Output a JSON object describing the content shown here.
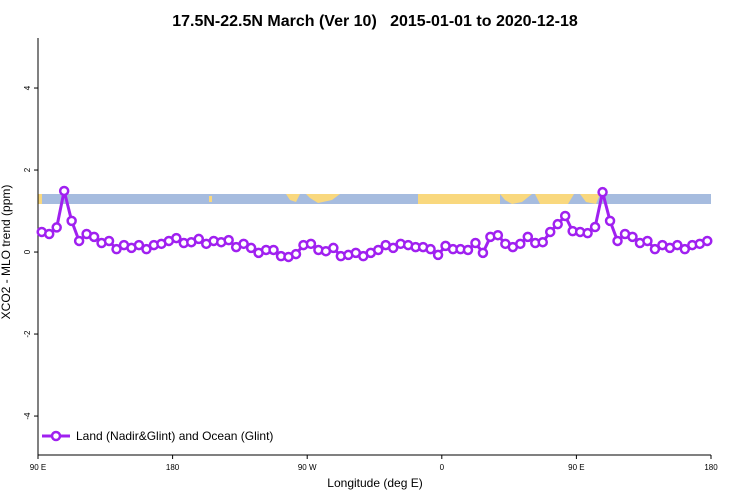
{
  "chart_data": {
    "type": "line",
    "title": "17.5N-22.5N March (Ver 10)   2015-01-01 to 2020-12-18",
    "x_label": "Longitude (deg E)",
    "y_label": "XCO2 - MLO trend (ppm)",
    "xlim": [
      90,
      540
    ],
    "ylim": [
      -4.95,
      5.22
    ],
    "xticks": [
      {
        "value": 90,
        "label": "90 E"
      },
      {
        "value": 180,
        "label": "180"
      },
      {
        "value": 270,
        "label": "90 W"
      },
      {
        "value": 360,
        "label": "0"
      },
      {
        "value": 450,
        "label": "90 E"
      },
      {
        "value": 540,
        "label": "180"
      }
    ],
    "yticks": [
      -4,
      -2,
      0,
      2,
      4
    ],
    "legend": "bottom-left",
    "x": [
      92.5,
      97.5,
      102.5,
      107.5,
      112.5,
      117.5,
      122.5,
      127.5,
      132.5,
      137.5,
      142.5,
      147.5,
      152.5,
      157.5,
      162.5,
      167.5,
      172.5,
      177.5,
      182.5,
      187.5,
      192.5,
      197.5,
      202.5,
      207.5,
      212.5,
      217.5,
      222.5,
      227.5,
      232.5,
      237.5,
      242.5,
      247.5,
      252.5,
      257.5,
      262.5,
      267.5,
      272.5,
      277.5,
      282.5,
      287.5,
      292.5,
      297.5,
      302.5,
      307.5,
      312.5,
      317.5,
      322.5,
      327.5,
      332.5,
      337.5,
      342.5,
      347.5,
      352.5,
      357.5,
      362.5,
      367.5,
      372.5,
      377.5,
      382.5,
      387.5,
      392.5,
      397.5,
      402.5,
      407.5,
      412.5,
      417.5,
      422.5,
      427.5,
      432.5,
      437.5,
      442.5,
      447.5,
      452.5,
      457.5,
      462.5,
      467.5,
      472.5,
      477.5,
      482.5,
      487.5,
      492.5,
      497.5,
      502.5,
      507.5,
      512.5,
      517.5,
      522.5,
      527.5,
      532.5,
      537.5
    ],
    "series": [
      {
        "name": "Land (Nadir&Glint) and Ocean (Glint)",
        "color": "#a020f0",
        "values": [
          0.49,
          0.44,
          0.6,
          1.49,
          0.76,
          0.27,
          0.44,
          0.37,
          0.22,
          0.27,
          0.07,
          0.17,
          0.1,
          0.17,
          0.07,
          0.17,
          0.2,
          0.27,
          0.34,
          0.22,
          0.24,
          0.32,
          0.2,
          0.27,
          0.24,
          0.29,
          0.12,
          0.2,
          0.1,
          -0.02,
          0.05,
          0.05,
          -0.1,
          -0.12,
          -0.05,
          0.17,
          0.2,
          0.05,
          0.02,
          0.1,
          -0.1,
          -0.07,
          -0.02,
          -0.1,
          -0.02,
          0.05,
          0.17,
          0.1,
          0.2,
          0.17,
          0.12,
          0.12,
          0.07,
          -0.07,
          0.15,
          0.07,
          0.07,
          0.05,
          0.22,
          -0.02,
          0.37,
          0.41,
          0.2,
          0.12,
          0.2,
          0.37,
          0.22,
          0.24,
          0.49,
          0.68,
          0.88,
          0.51,
          0.49,
          0.46,
          0.61,
          1.46,
          0.76,
          0.27,
          0.44,
          0.37,
          0.22,
          0.27,
          0.07,
          0.17,
          0.1,
          0.17,
          0.07,
          0.17,
          0.2,
          0.27
        ]
      }
    ]
  }
}
